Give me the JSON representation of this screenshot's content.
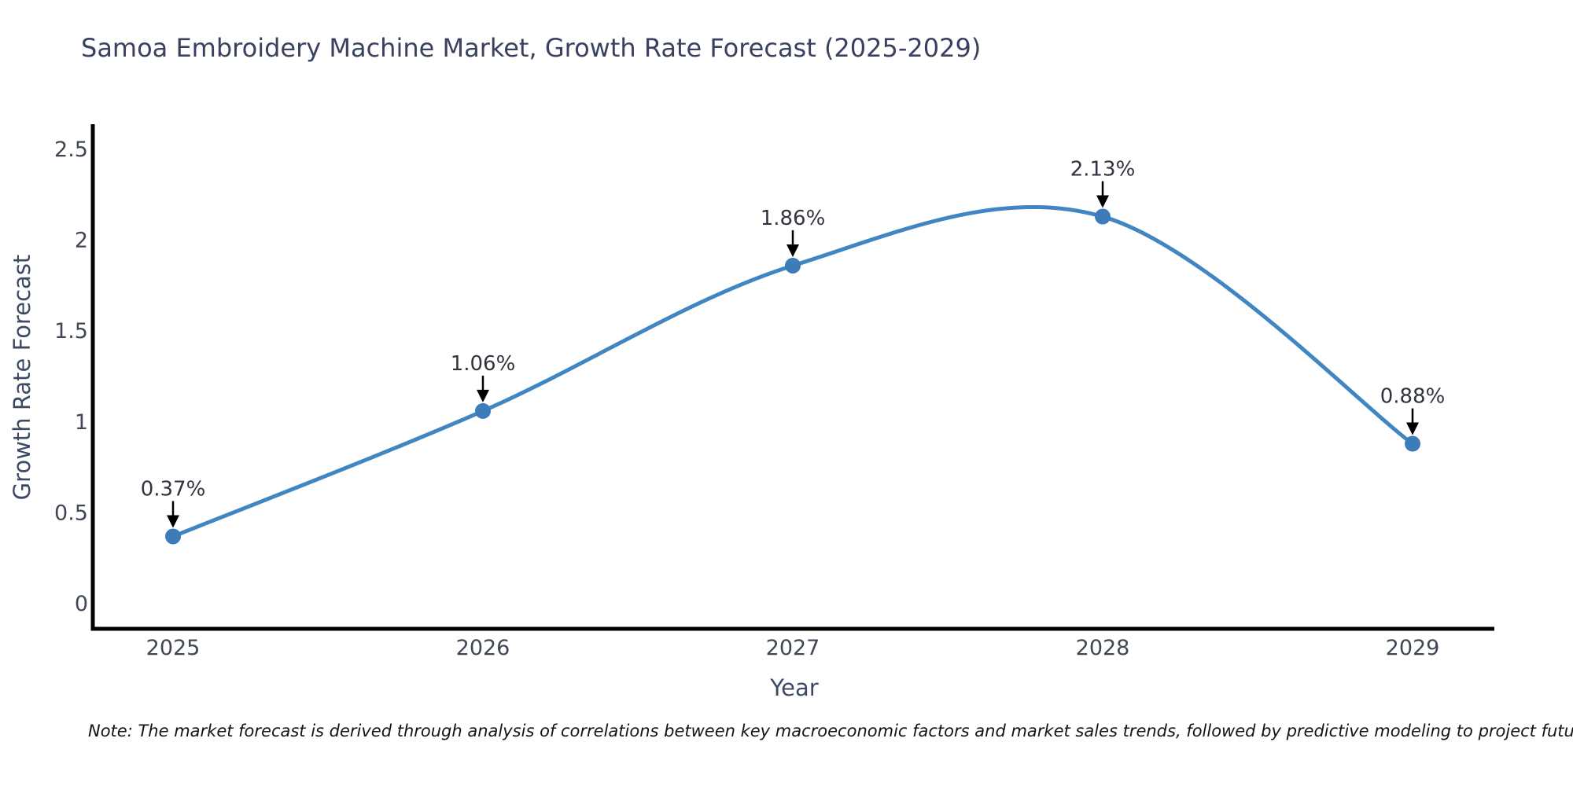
{
  "title": "Samoa Embroidery Machine Market, Growth Rate Forecast (2025-2029)",
  "note": "Note: The market forecast is derived through analysis of correlations between key macroeconomic factors and market sales trends, followed by predictive modeling to project future sales",
  "chart_data": {
    "type": "line",
    "title": "Samoa Embroidery Machine Market, Growth Rate Forecast (2025-2029)",
    "xlabel": "Year",
    "ylabel": "Growth Rate Forecast",
    "categories": [
      "2025",
      "2026",
      "2027",
      "2028",
      "2029"
    ],
    "x": [
      2025,
      2026,
      2027,
      2028,
      2029
    ],
    "values": [
      0.37,
      1.06,
      1.86,
      2.13,
      0.88
    ],
    "point_labels": [
      "0.37%",
      "1.06%",
      "1.86%",
      "2.13%",
      "0.88%"
    ],
    "ytick_values": [
      0,
      0.5,
      1,
      1.5,
      2,
      2.5
    ],
    "ytick_labels": [
      "0",
      "0.5",
      "1",
      "1.5",
      "2",
      "2.5"
    ],
    "ylim": [
      -0.14,
      2.65
    ],
    "xlim": [
      2024.74,
      2029.26
    ],
    "line_shape": "spline",
    "grid": false,
    "legend": false,
    "annotations_have_arrows": true,
    "colors": {
      "line": "#4186c0",
      "marker": "#3d7bb9",
      "axis": "#000000",
      "title_text": "#3a4160",
      "axis_label_text": "#3d4a66",
      "tick_text": "#3f4756",
      "annotation_text": "#2f3440",
      "arrow": "#000000",
      "note_text": "#141414",
      "background": "#ffffff"
    }
  }
}
